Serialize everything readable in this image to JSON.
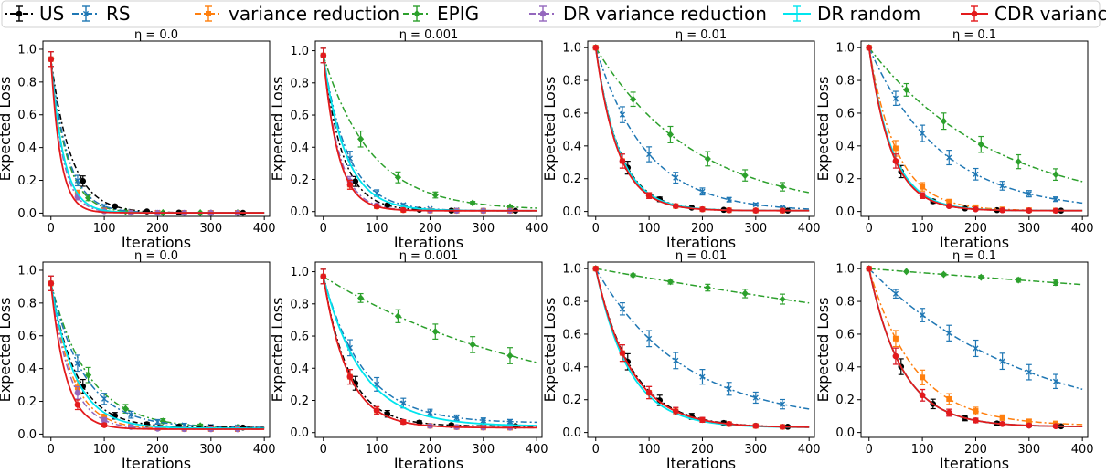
{
  "legend": [
    {
      "name": "US",
      "color": "#000000",
      "marker": "circle",
      "dash": "2 3 6 3"
    },
    {
      "name": "RS",
      "color": "#1f77b4",
      "marker": "x",
      "dash": "7 3 2 3"
    },
    {
      "name": "variance reduction",
      "color": "#ff7f0e",
      "marker": "square",
      "dash": "7 3 2 3"
    },
    {
      "name": "EPIG",
      "color": "#2ca02c",
      "marker": "diamond",
      "dash": "7 3 2 3"
    },
    {
      "name": "DR variance reduction",
      "color": "#9467bd",
      "marker": "circle",
      "dash": "7 3 2 3"
    },
    {
      "name": "DR random",
      "color": "#00e5ee",
      "marker": "none",
      "dash": ""
    },
    {
      "name": "CDR variance reduction",
      "color": "#e31a1c",
      "marker": "circle",
      "dash": ""
    }
  ],
  "chart_data": [
    {
      "type": "line",
      "title": "η = 0.0",
      "xlabel": "Iterations",
      "ylabel": "Expected Loss",
      "xlim": [
        -15,
        410
      ],
      "ylim": [
        -0.02,
        1.05
      ],
      "xticks": [
        0,
        100,
        200,
        300,
        400
      ],
      "yticks": [
        0.0,
        0.2,
        0.4,
        0.6,
        0.8,
        1.0
      ],
      "series": [
        {
          "name": "US",
          "k": 38,
          "a": 0.94,
          "c": 0.002,
          "mx": [
            0,
            60,
            120,
            180,
            240,
            300,
            360
          ]
        },
        {
          "name": "RS",
          "k": 32,
          "a": 0.94,
          "c": 0.002,
          "mx": [
            0,
            50,
            100,
            150,
            200,
            250,
            300,
            350
          ]
        },
        {
          "name": "variance reduction",
          "k": 24,
          "a": 0.94,
          "c": 0.002,
          "mx": [
            0,
            50,
            100,
            150,
            200,
            250,
            300,
            350
          ]
        },
        {
          "name": "EPIG",
          "k": 30,
          "a": 0.94,
          "c": 0.002,
          "mx": [
            0,
            70,
            140,
            210,
            280,
            350
          ]
        },
        {
          "name": "DR variance reduction",
          "k": 22,
          "a": 0.94,
          "c": 0.002,
          "mx": [
            0,
            50,
            100,
            150,
            200,
            250,
            300,
            350
          ]
        },
        {
          "name": "DR random",
          "k": 24,
          "a": 0.94,
          "c": 0.002,
          "mx": []
        },
        {
          "name": "CDR variance reduction",
          "k": 18,
          "a": 0.94,
          "c": 0.002,
          "mx": [
            0
          ]
        }
      ]
    },
    {
      "type": "line",
      "title": "η = 0.001",
      "xlabel": "Iterations",
      "ylabel": "",
      "xlim": [
        -15,
        410
      ],
      "ylim": [
        -0.03,
        1.06
      ],
      "xticks": [
        0,
        100,
        200,
        300,
        400
      ],
      "yticks": [
        0.0,
        0.2,
        0.4,
        0.6,
        0.8,
        1.0
      ],
      "series": [
        {
          "name": "US",
          "k": 36,
          "a": 0.97,
          "c": 0.005,
          "mx": [
            0,
            60,
            120,
            180,
            240,
            300,
            360
          ]
        },
        {
          "name": "RS",
          "k": 46,
          "a": 0.97,
          "c": 0.005,
          "mx": [
            0,
            50,
            100,
            150,
            200,
            250,
            300,
            350
          ]
        },
        {
          "name": "variance reduction",
          "k": 28,
          "a": 0.97,
          "c": 0.005,
          "mx": [
            0,
            50,
            100,
            150,
            200,
            250,
            300,
            350
          ]
        },
        {
          "name": "EPIG",
          "k": 90,
          "a": 0.97,
          "c": 0.01,
          "mx": [
            0,
            70,
            140,
            210,
            280,
            350
          ]
        },
        {
          "name": "DR variance reduction",
          "k": 30,
          "a": 0.97,
          "c": 0.005,
          "mx": [
            0,
            50,
            100,
            150,
            200,
            250,
            300,
            350
          ]
        },
        {
          "name": "DR random",
          "k": 42,
          "a": 0.97,
          "c": 0.005,
          "mx": []
        },
        {
          "name": "CDR variance reduction",
          "k": 28,
          "a": 0.97,
          "c": 0.005,
          "mx": [
            0,
            50,
            100,
            150
          ]
        }
      ]
    },
    {
      "type": "line",
      "title": "η = 0.01",
      "xlabel": "Iterations",
      "ylabel": "",
      "xlim": [
        -15,
        410
      ],
      "ylim": [
        -0.03,
        1.04
      ],
      "xticks": [
        0,
        100,
        200,
        300,
        400
      ],
      "yticks": [
        0.0,
        0.2,
        0.4,
        0.6,
        0.8,
        1.0
      ],
      "series": [
        {
          "name": "US",
          "k": 45,
          "a": 1.0,
          "c": 0.005,
          "mx": [
            0,
            60,
            120,
            180,
            240,
            300,
            360
          ]
        },
        {
          "name": "RS",
          "k": 95,
          "a": 1.0,
          "c": 0.0,
          "mx": [
            0,
            50,
            100,
            150,
            200,
            250,
            300,
            350
          ]
        },
        {
          "name": "variance reduction",
          "k": 42,
          "a": 1.0,
          "c": 0.005,
          "mx": [
            0,
            50,
            100,
            150,
            200,
            250,
            300,
            350
          ]
        },
        {
          "name": "EPIG",
          "k": 185,
          "a": 1.0,
          "c": 0.0,
          "mx": [
            0,
            70,
            140,
            210,
            280,
            350
          ]
        },
        {
          "name": "DR variance reduction",
          "k": 42,
          "a": 1.0,
          "c": 0.005,
          "mx": [
            0,
            50,
            100,
            150,
            200,
            250,
            300,
            350
          ]
        },
        {
          "name": "DR random",
          "k": 44,
          "a": 1.0,
          "c": 0.005,
          "mx": []
        },
        {
          "name": "CDR variance reduction",
          "k": 42,
          "a": 1.0,
          "c": 0.005,
          "mx": [
            0,
            50,
            100,
            150,
            200,
            250,
            300,
            350
          ]
        }
      ]
    },
    {
      "type": "line",
      "title": "η = 0.1",
      "xlabel": "Iterations",
      "ylabel": "",
      "xlim": [
        -15,
        410
      ],
      "ylim": [
        -0.03,
        1.04
      ],
      "xticks": [
        0,
        100,
        200,
        300,
        400
      ],
      "yticks": [
        0.0,
        0.2,
        0.4,
        0.6,
        0.8,
        1.0
      ],
      "series": [
        {
          "name": "US",
          "k": 42,
          "a": 1.0,
          "c": 0.005,
          "mx": [
            0,
            60,
            120,
            180,
            240,
            300,
            360
          ]
        },
        {
          "name": "RS",
          "k": 135,
          "a": 1.0,
          "c": 0.0,
          "mx": [
            0,
            50,
            100,
            150,
            200,
            250,
            300,
            350
          ]
        },
        {
          "name": "variance reduction",
          "k": 52,
          "a": 1.0,
          "c": 0.005,
          "mx": [
            0,
            50,
            100,
            150,
            200,
            250,
            300,
            350
          ]
        },
        {
          "name": "EPIG",
          "k": 235,
          "a": 1.0,
          "c": 0.0,
          "mx": [
            0,
            70,
            140,
            210,
            280,
            350
          ]
        },
        {
          "name": "DR variance reduction",
          "k": 42,
          "a": 1.0,
          "c": 0.005,
          "mx": [
            0,
            50,
            100,
            150,
            200,
            250,
            300,
            350
          ]
        },
        {
          "name": "DR random",
          "k": 44,
          "a": 1.0,
          "c": 0.005,
          "mx": []
        },
        {
          "name": "CDR variance reduction",
          "k": 42,
          "a": 1.0,
          "c": 0.005,
          "mx": [
            0,
            50,
            100,
            150,
            200,
            250,
            300,
            350
          ]
        }
      ]
    },
    {
      "type": "line",
      "title": "η = 0.0",
      "xlabel": "Iterations",
      "ylabel": "Expected Loss",
      "xlim": [
        -15,
        410
      ],
      "ylim": [
        -0.02,
        1.05
      ],
      "xticks": [
        0,
        100,
        200,
        300,
        400
      ],
      "yticks": [
        0.0,
        0.2,
        0.4,
        0.6,
        0.8,
        1.0
      ],
      "series": [
        {
          "name": "US",
          "k": 48,
          "a": 0.92,
          "c": 0.04,
          "mx": [
            0,
            60,
            120,
            180,
            240,
            300,
            360
          ]
        },
        {
          "name": "RS",
          "k": 62,
          "a": 0.92,
          "c": 0.04,
          "mx": [
            0,
            50,
            100,
            150,
            200,
            250,
            300,
            350
          ]
        },
        {
          "name": "variance reduction",
          "k": 40,
          "a": 0.92,
          "c": 0.03,
          "mx": [
            0,
            50,
            100,
            150,
            200,
            250,
            300,
            350
          ]
        },
        {
          "name": "EPIG",
          "k": 70,
          "a": 0.92,
          "c": 0.035,
          "mx": [
            0,
            70,
            140,
            210,
            280,
            350
          ]
        },
        {
          "name": "DR variance reduction",
          "k": 36,
          "a": 0.92,
          "c": 0.03,
          "mx": [
            0,
            50,
            100,
            150,
            200,
            250,
            300,
            350
          ]
        },
        {
          "name": "DR random",
          "k": 45,
          "a": 0.92,
          "c": 0.035,
          "mx": []
        },
        {
          "name": "CDR variance reduction",
          "k": 28,
          "a": 0.92,
          "c": 0.03,
          "mx": [
            0,
            50,
            100
          ]
        }
      ]
    },
    {
      "type": "line",
      "title": "η = 0.001",
      "xlabel": "Iterations",
      "ylabel": "",
      "xlim": [
        -15,
        410
      ],
      "ylim": [
        -0.03,
        1.06
      ],
      "xticks": [
        0,
        100,
        200,
        300,
        400
      ],
      "yticks": [
        0.0,
        0.2,
        0.4,
        0.6,
        0.8,
        1.0
      ],
      "series": [
        {
          "name": "US",
          "k": 48,
          "a": 0.97,
          "c": 0.04,
          "mx": [
            0,
            60,
            120,
            180,
            240,
            300,
            360
          ]
        },
        {
          "name": "RS",
          "k": 75,
          "a": 0.97,
          "c": 0.06,
          "mx": [
            0,
            50,
            100,
            150,
            200,
            250,
            300,
            350
          ]
        },
        {
          "name": "variance reduction",
          "k": 46,
          "a": 0.97,
          "c": 0.03,
          "mx": [
            0,
            50,
            100,
            150,
            200,
            250,
            300,
            350
          ]
        },
        {
          "name": "EPIG",
          "k": 420,
          "a": 0.97,
          "c": 0.1,
          "mx": [
            0,
            70,
            140,
            210,
            280,
            350
          ]
        },
        {
          "name": "DR variance reduction",
          "k": 46,
          "a": 0.97,
          "c": 0.03,
          "mx": [
            0,
            50,
            100,
            150,
            200,
            250,
            300,
            350
          ]
        },
        {
          "name": "DR random",
          "k": 72,
          "a": 0.97,
          "c": 0.04,
          "mx": []
        },
        {
          "name": "CDR variance reduction",
          "k": 46,
          "a": 0.97,
          "c": 0.03,
          "mx": [
            0,
            50,
            100,
            150
          ]
        }
      ]
    },
    {
      "type": "line",
      "title": "η = 0.01",
      "xlabel": "Iterations",
      "ylabel": "",
      "xlim": [
        -15,
        410
      ],
      "ylim": [
        -0.03,
        1.04
      ],
      "xticks": [
        0,
        100,
        200,
        300,
        400
      ],
      "yticks": [
        0.0,
        0.2,
        0.4,
        0.6,
        0.8,
        1.0
      ],
      "series": [
        {
          "name": "US",
          "k": 68,
          "a": 1.0,
          "c": 0.03,
          "mx": [
            0,
            60,
            120,
            180,
            240,
            300,
            360
          ]
        },
        {
          "name": "RS",
          "k": 165,
          "a": 1.0,
          "c": 0.06,
          "mx": [
            0,
            50,
            100,
            150,
            200,
            250,
            300,
            350
          ]
        },
        {
          "name": "variance reduction",
          "k": 66,
          "a": 1.0,
          "c": 0.03,
          "mx": [
            0,
            50,
            100,
            150,
            200,
            250,
            300,
            350
          ]
        },
        {
          "name": "EPIG",
          "k": 1700,
          "a": 1.0,
          "c": 0.0,
          "mx": [
            0,
            70,
            140,
            210,
            280,
            350
          ]
        },
        {
          "name": "DR variance reduction",
          "k": 66,
          "a": 1.0,
          "c": 0.03,
          "mx": [
            0,
            50,
            100,
            150,
            200,
            250,
            300,
            350
          ]
        },
        {
          "name": "DR random",
          "k": 62,
          "a": 1.0,
          "c": 0.03,
          "mx": []
        },
        {
          "name": "CDR variance reduction",
          "k": 66,
          "a": 1.0,
          "c": 0.03,
          "mx": [
            0,
            50,
            100,
            150,
            200,
            250,
            300,
            350
          ]
        }
      ]
    },
    {
      "type": "line",
      "title": "η = 0.1",
      "xlabel": "Iterations",
      "ylabel": "",
      "xlim": [
        -15,
        410
      ],
      "ylim": [
        -0.03,
        1.04
      ],
      "xticks": [
        0,
        100,
        200,
        300,
        400
      ],
      "yticks": [
        0.0,
        0.2,
        0.4,
        0.6,
        0.8,
        1.0
      ],
      "series": [
        {
          "name": "US",
          "k": 62,
          "a": 1.0,
          "c": 0.035,
          "mx": [
            0,
            60,
            120,
            180,
            240,
            300,
            360
          ]
        },
        {
          "name": "RS",
          "k": 300,
          "a": 1.0,
          "c": 0.0,
          "mx": [
            0,
            50,
            100,
            150,
            200,
            250,
            300,
            350
          ]
        },
        {
          "name": "variance reduction",
          "k": 85,
          "a": 1.0,
          "c": 0.04,
          "mx": [
            0,
            50,
            100,
            150,
            200,
            250,
            300,
            350
          ]
        },
        {
          "name": "EPIG",
          "k": 3900,
          "a": 1.0,
          "c": 0.0,
          "mx": [
            0,
            70,
            140,
            210,
            280,
            350
          ]
        },
        {
          "name": "DR variance reduction",
          "k": 62,
          "a": 1.0,
          "c": 0.035,
          "mx": [
            0,
            50,
            100,
            150,
            200,
            250,
            300,
            350
          ]
        },
        {
          "name": "DR random",
          "k": 62,
          "a": 1.0,
          "c": 0.035,
          "mx": []
        },
        {
          "name": "CDR variance reduction",
          "k": 62,
          "a": 1.0,
          "c": 0.035,
          "mx": [
            0,
            50,
            100,
            150,
            200,
            250,
            300,
            350
          ]
        }
      ]
    }
  ]
}
